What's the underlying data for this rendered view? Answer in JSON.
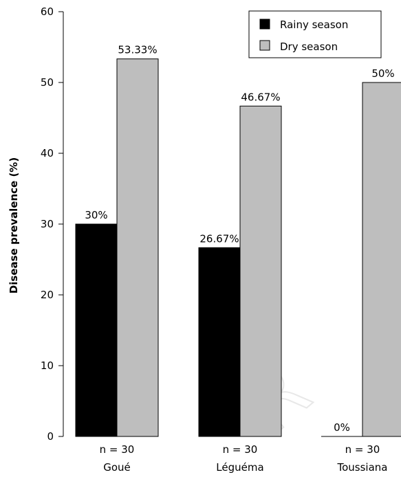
{
  "chart_data": {
    "type": "bar",
    "ylabel": "Disease prevalence (%)",
    "ylim": [
      0,
      60
    ],
    "yticks": [
      0,
      10,
      20,
      30,
      40,
      50,
      60
    ],
    "categories": [
      "Goué",
      "Léguéma",
      "Toussiana"
    ],
    "sample_sizes": [
      "n = 30",
      "n = 30",
      "n = 30"
    ],
    "series": [
      {
        "name": "Rainy season",
        "values": [
          30,
          26.67,
          0
        ],
        "labels": [
          "30%",
          "26.67%",
          "0%"
        ],
        "color": "#000000"
      },
      {
        "name": "Dry season",
        "values": [
          53.33,
          46.67,
          50
        ],
        "labels": [
          "53.33%",
          "46.67%",
          "50%"
        ],
        "color": "#bebebe"
      }
    ],
    "legend_position": "top-right",
    "grid": false
  }
}
